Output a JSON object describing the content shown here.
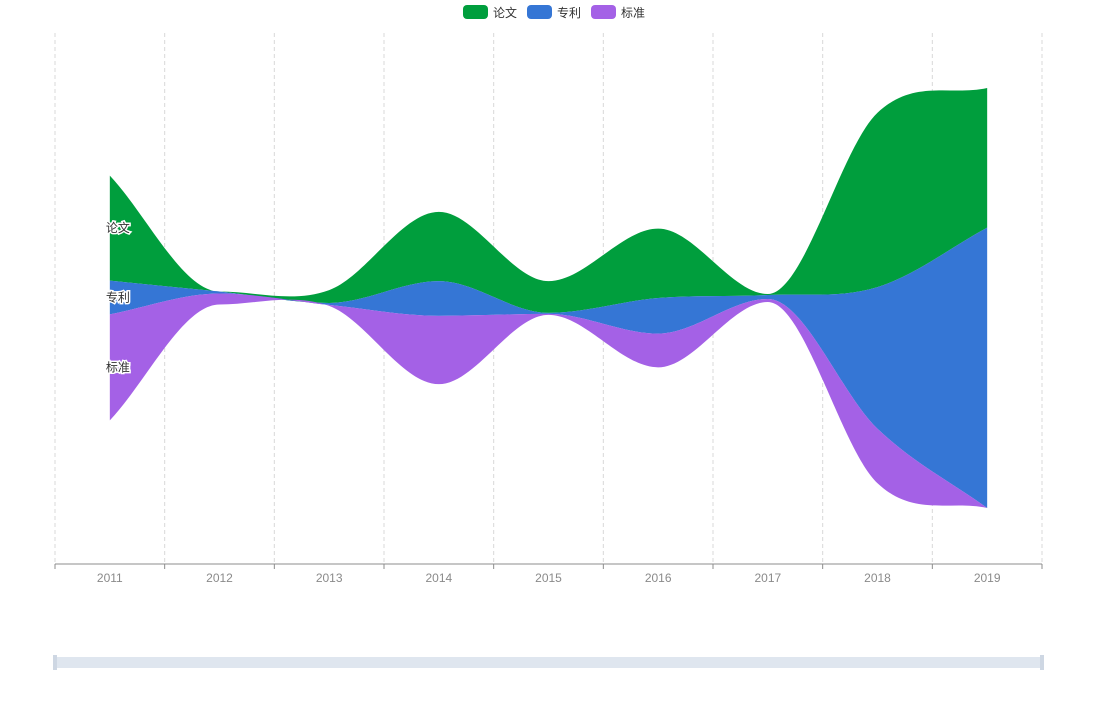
{
  "chart_data": {
    "type": "area",
    "subtype": "themeriver",
    "categories": [
      "2011",
      "2012",
      "2013",
      "2014",
      "2015",
      "2016",
      "2017",
      "2018",
      "2019"
    ],
    "series": [
      {
        "name": "论文",
        "color": "#009e3d",
        "values": [
          106,
          0,
          13,
          70,
          32,
          70,
          1,
          176,
          141
        ]
      },
      {
        "name": "专利",
        "color": "#3576d5",
        "values": [
          34,
          2,
          2,
          35,
          1,
          36,
          4,
          143,
          283
        ]
      },
      {
        "name": "标准",
        "color": "#a461e6",
        "values": [
          107,
          11,
          1,
          69,
          1,
          34,
          3,
          55,
          0
        ]
      }
    ],
    "legend": {
      "position": "top-center"
    },
    "xgrid": "dashed",
    "datazoom": true
  }
}
